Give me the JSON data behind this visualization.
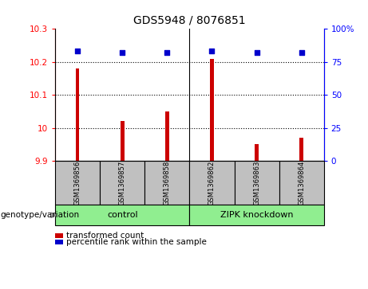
{
  "title": "GDS5948 / 8076851",
  "samples": [
    "GSM1369856",
    "GSM1369857",
    "GSM1369858",
    "GSM1369862",
    "GSM1369863",
    "GSM1369864"
  ],
  "red_values": [
    10.18,
    10.02,
    10.05,
    10.21,
    9.95,
    9.97
  ],
  "blue_values": [
    83,
    82,
    82,
    83,
    82,
    82
  ],
  "ylim_left": [
    9.9,
    10.3
  ],
  "ylim_right": [
    0,
    100
  ],
  "yticks_left": [
    9.9,
    10.0,
    10.1,
    10.2,
    10.3
  ],
  "yticks_right": [
    0,
    25,
    50,
    75,
    100
  ],
  "ytick_labels_left": [
    "9.9",
    "10",
    "10.1",
    "10.2",
    "10.3"
  ],
  "ytick_labels_right": [
    "0",
    "25",
    "50",
    "75",
    "100%"
  ],
  "groups": [
    {
      "label": "control",
      "indices": [
        0,
        1,
        2
      ],
      "color": "#90EE90"
    },
    {
      "label": "ZIPK knockdown",
      "indices": [
        3,
        4,
        5
      ],
      "color": "#90EE90"
    }
  ],
  "bar_color": "#CC0000",
  "dot_color": "#0000CC",
  "label_area_color": "#C0C0C0",
  "legend_red_label": "transformed count",
  "legend_blue_label": "percentile rank within the sample",
  "genotype_label": "genotype/variation",
  "bar_width": 0.08
}
